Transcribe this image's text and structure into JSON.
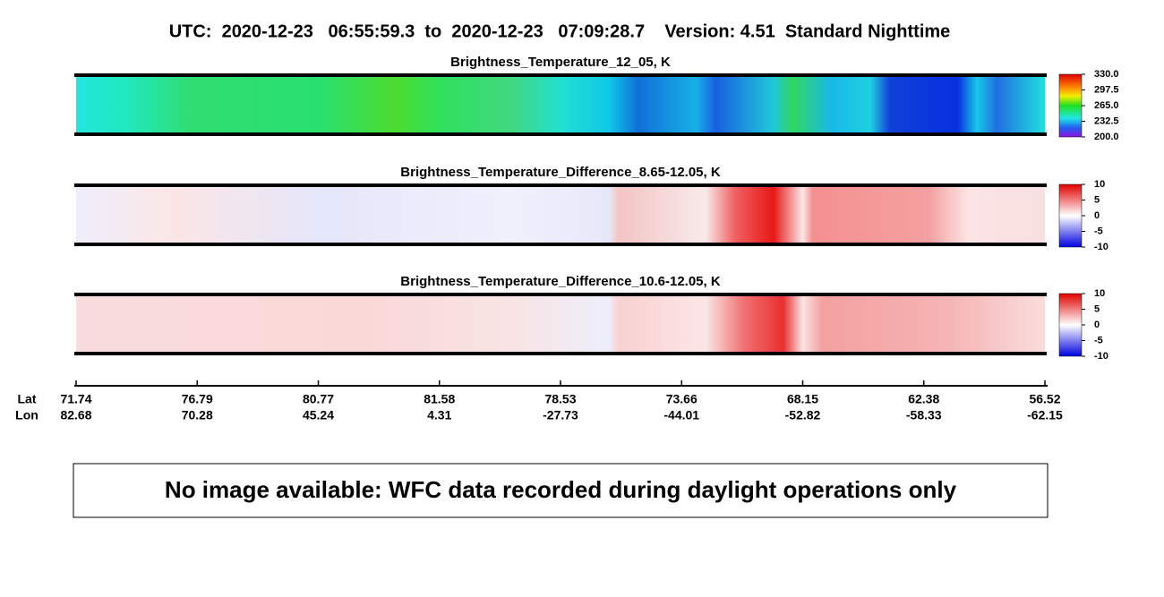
{
  "title": "UTC:  2020-12-23   06:55:59.3  to  2020-12-23   07:09:28.7    Version: 4.51  Standard Nighttime",
  "panels": [
    {
      "title": "Brightness_Temperature_12_05, K",
      "colorbar_ticks": [
        "330.0",
        "297.5",
        "265.0",
        "232.5",
        "200.0"
      ]
    },
    {
      "title": "Brightness_Temperature_Difference_8.65-12.05, K",
      "colorbar_ticks": [
        "10",
        "5",
        "0",
        "-5",
        "-10"
      ]
    },
    {
      "title": "Brightness_Temperature_Difference_10.6-12.05, K",
      "colorbar_ticks": [
        "10",
        "5",
        "0",
        "-5",
        "-10"
      ]
    }
  ],
  "axis": {
    "row_labels": [
      "Lat",
      "Lon"
    ],
    "ticks": [
      {
        "lat": "71.74",
        "lon": "82.68"
      },
      {
        "lat": "76.79",
        "lon": "70.28"
      },
      {
        "lat": "80.77",
        "lon": "45.24"
      },
      {
        "lat": "81.58",
        "lon": "4.31"
      },
      {
        "lat": "78.53",
        "lon": "-27.73"
      },
      {
        "lat": "73.66",
        "lon": "-44.01"
      },
      {
        "lat": "68.15",
        "lon": "-52.82"
      },
      {
        "lat": "62.38",
        "lon": "-58.33"
      },
      {
        "lat": "56.52",
        "lon": "-62.15"
      }
    ]
  },
  "message": "No image available: WFC data recorded during daylight operations only"
}
